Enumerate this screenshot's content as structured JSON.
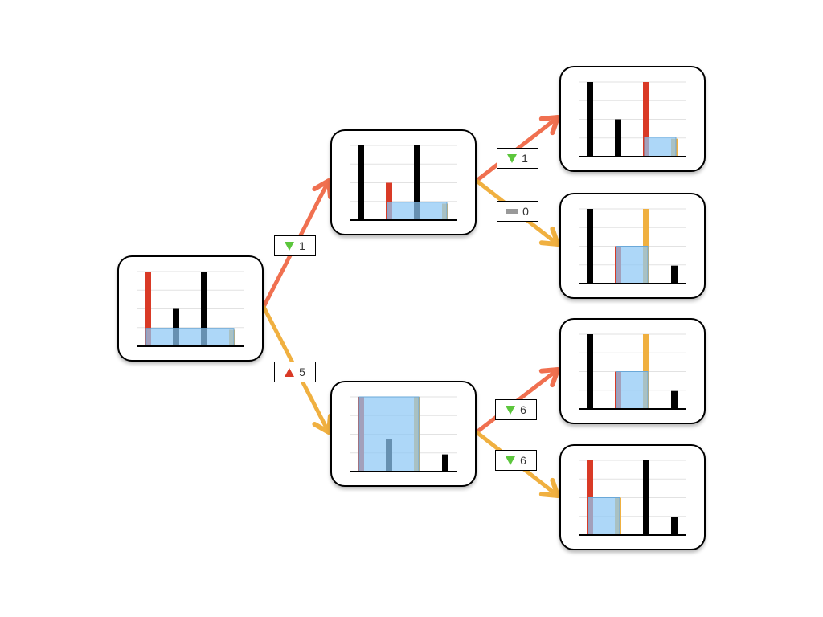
{
  "colors": {
    "up_edge": "#f07050",
    "down_edge": "#f0b040",
    "bar_black": "#000000",
    "bar_red": "#d93a26",
    "bar_orange": "#f0b040",
    "highlight": "#8ec8f5",
    "gridline": "#e2e2e2",
    "icon_down": "#5cc63c",
    "icon_up": "#d93a26",
    "icon_flat": "#999999"
  },
  "nodes": [
    {
      "id": "root",
      "bars": [
        {
          "v": 1.0,
          "c": "red"
        },
        {
          "v": 0.5,
          "c": "black"
        },
        {
          "v": 1.0,
          "c": "black"
        },
        {
          "v": 0.22,
          "c": "orange"
        }
      ],
      "hl": [
        0,
        3,
        0.24
      ]
    },
    {
      "id": "a",
      "bars": [
        {
          "v": 1.0,
          "c": "black"
        },
        {
          "v": 0.5,
          "c": "red"
        },
        {
          "v": 1.0,
          "c": "black"
        },
        {
          "v": 0.22,
          "c": "orange"
        }
      ],
      "hl": [
        1,
        3,
        0.24
      ]
    },
    {
      "id": "b",
      "bars": [
        {
          "v": 1.0,
          "c": "red"
        },
        {
          "v": 0.43,
          "c": "black"
        },
        {
          "v": 1.0,
          "c": "orange"
        },
        {
          "v": 0.23,
          "c": "black"
        }
      ],
      "hl": [
        0,
        2,
        1.0
      ]
    },
    {
      "id": "aa",
      "bars": [
        {
          "v": 1.0,
          "c": "black"
        },
        {
          "v": 0.5,
          "c": "black"
        },
        {
          "v": 1.0,
          "c": "red"
        },
        {
          "v": 0.24,
          "c": "orange"
        }
      ],
      "hl": [
        2,
        3,
        0.26
      ]
    },
    {
      "id": "ab",
      "bars": [
        {
          "v": 1.0,
          "c": "black"
        },
        {
          "v": 0.5,
          "c": "red"
        },
        {
          "v": 1.0,
          "c": "orange"
        },
        {
          "v": 0.24,
          "c": "black"
        }
      ],
      "hl": [
        1,
        2,
        0.5
      ]
    },
    {
      "id": "ba",
      "bars": [
        {
          "v": 1.0,
          "c": "black"
        },
        {
          "v": 0.5,
          "c": "red"
        },
        {
          "v": 1.0,
          "c": "orange"
        },
        {
          "v": 0.24,
          "c": "black"
        }
      ],
      "hl": [
        1,
        2,
        0.5
      ]
    },
    {
      "id": "bb",
      "bars": [
        {
          "v": 1.0,
          "c": "red"
        },
        {
          "v": 0.5,
          "c": "orange"
        },
        {
          "v": 1.0,
          "c": "black"
        },
        {
          "v": 0.24,
          "c": "black"
        }
      ],
      "hl": [
        0,
        1,
        0.5
      ]
    }
  ],
  "edges": [
    {
      "from": "root",
      "to": "a",
      "type": "up",
      "delta": {
        "icon": "down-triangle-icon",
        "value": "1"
      }
    },
    {
      "from": "root",
      "to": "b",
      "type": "down",
      "delta": {
        "icon": "up-triangle-icon",
        "value": "5"
      }
    },
    {
      "from": "a",
      "to": "aa",
      "type": "up",
      "delta": {
        "icon": "down-triangle-icon",
        "value": "1"
      }
    },
    {
      "from": "a",
      "to": "ab",
      "type": "down",
      "delta": {
        "icon": "flat-dash-icon",
        "value": "0"
      }
    },
    {
      "from": "b",
      "to": "ba",
      "type": "up",
      "delta": {
        "icon": "down-triangle-icon",
        "value": "6"
      }
    },
    {
      "from": "b",
      "to": "bb",
      "type": "down",
      "delta": {
        "icon": "down-triangle-icon",
        "value": "6"
      }
    }
  ]
}
